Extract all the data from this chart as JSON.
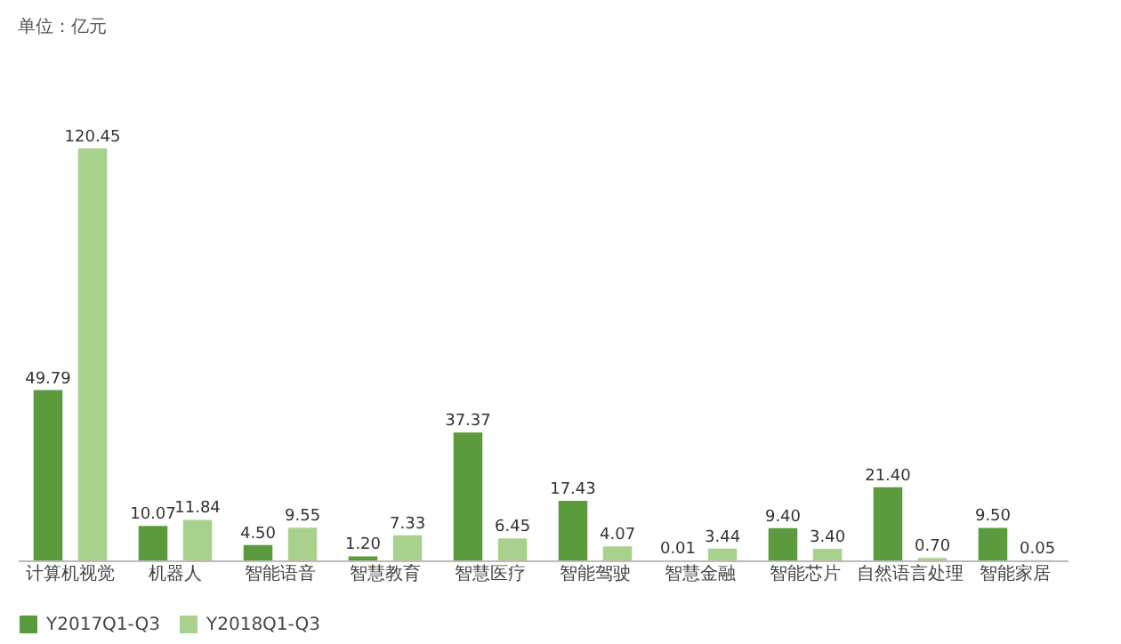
{
  "chart_data": {
    "type": "bar",
    "annotations": [
      "单位：亿元"
    ],
    "categories": [
      "计算机视觉",
      "机器人",
      "智能语音",
      "智慧教育",
      "智慧医疗",
      "智能驾驶",
      "智慧金融",
      "智能芯片",
      "自然语言处理",
      "智能家居"
    ],
    "series": [
      {
        "name": "Y2017Q1-Q3",
        "color": "#5b9b3e",
        "values": [
          49.79,
          10.07,
          4.5,
          1.2,
          37.37,
          17.43,
          0.01,
          9.4,
          21.4,
          9.5
        ],
        "value_labels": [
          "49.79",
          "10.07",
          "4.50",
          "1.20",
          "37.37",
          "17.43",
          "0.01",
          "9.40",
          "21.40",
          "9.50"
        ]
      },
      {
        "name": "Y2018Q1-Q3",
        "color": "#a9d18e",
        "values": [
          120.45,
          11.84,
          9.55,
          7.33,
          6.45,
          4.07,
          3.44,
          3.4,
          0.7,
          0.05
        ],
        "value_labels": [
          "120.45",
          "11.84",
          "9.55",
          "7.33",
          "6.45",
          "4.07",
          "3.44",
          "3.40",
          "0.70",
          "0.05"
        ]
      }
    ],
    "legend": "bottom",
    "grid": false
  }
}
